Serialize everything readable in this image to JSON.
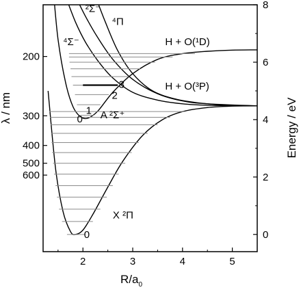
{
  "chart_data": {
    "type": "line",
    "xlabel": "R/a",
    "xlabel_sub": "0",
    "ylabel_right": "Energy / eV",
    "ylabel_left": "λ / nm",
    "xlim": [
      1.2,
      5.5
    ],
    "ylim": [
      -0.6,
      8
    ],
    "x_ticks": [
      2,
      3,
      4,
      5
    ],
    "x_tick_labels": [
      "2",
      "3",
      "4",
      "5"
    ],
    "y_ticks": [
      0,
      2,
      4,
      6,
      8
    ],
    "y_tick_labels": [
      "0",
      "2",
      "4",
      "6",
      "8"
    ],
    "left_axis_ticks_nm": [
      200,
      300,
      400,
      500,
      600
    ],
    "left_axis_tick_labels": [
      "200",
      "300",
      "400",
      "500",
      "600"
    ],
    "grid": false,
    "series": [
      {
        "name": "X 2Π",
        "x": [
          1.3,
          1.45,
          1.6,
          1.75,
          1.85,
          2.0,
          2.2,
          2.5,
          2.8,
          3.2,
          3.6,
          4.0,
          4.5,
          5.0,
          5.5
        ],
        "y": [
          5.0,
          2.3,
          0.8,
          0.1,
          0.0,
          0.15,
          0.7,
          1.65,
          2.55,
          3.45,
          4.0,
          4.28,
          4.42,
          4.47,
          4.48
        ]
      },
      {
        "name": "A 2Σ+",
        "x": [
          1.4,
          1.5,
          1.65,
          1.8,
          1.95,
          2.1,
          2.3,
          2.6,
          3.0,
          3.5,
          4.0,
          4.5,
          5.0,
          5.5
        ],
        "y": [
          8.6,
          6.8,
          5.3,
          4.45,
          4.1,
          4.05,
          4.3,
          4.95,
          5.6,
          6.1,
          6.3,
          6.38,
          6.42,
          6.43
        ]
      },
      {
        "name": "4Σ-",
        "x": [
          1.65,
          1.85,
          2.05,
          2.3,
          2.6,
          3.0,
          3.5,
          4.0,
          4.5,
          5.5
        ],
        "y": [
          8.3,
          7.4,
          6.7,
          6.05,
          5.45,
          4.95,
          4.68,
          4.55,
          4.5,
          4.48
        ]
      },
      {
        "name": "2Σ-",
        "x": [
          1.85,
          2.05,
          2.3,
          2.6,
          3.0,
          3.5,
          4.0,
          4.5,
          5.5
        ],
        "y": [
          8.3,
          7.6,
          6.85,
          6.1,
          5.4,
          4.9,
          4.65,
          4.55,
          4.48
        ]
      },
      {
        "name": "4Π",
        "x": [
          2.25,
          2.45,
          2.7,
          3.0,
          3.4,
          3.9,
          4.5,
          5.0,
          5.5
        ],
        "y": [
          8.3,
          7.4,
          6.4,
          5.6,
          5.0,
          4.7,
          4.55,
          4.5,
          4.48
        ]
      }
    ],
    "vib_levels_X": [
      {
        "y": 0.0,
        "x1": 1.68,
        "x2": 2.05
      },
      {
        "y": 0.45,
        "x1": 1.58,
        "x2": 2.2
      },
      {
        "y": 0.88,
        "x1": 1.52,
        "x2": 2.35
      },
      {
        "y": 1.3,
        "x1": 1.48,
        "x2": 2.48
      },
      {
        "y": 1.7,
        "x1": 1.45,
        "x2": 2.6
      },
      {
        "y": 2.1,
        "x1": 1.42,
        "x2": 2.72
      },
      {
        "y": 2.48,
        "x1": 1.4,
        "x2": 2.85
      },
      {
        "y": 2.85,
        "x1": 1.38,
        "x2": 2.98
      },
      {
        "y": 3.2,
        "x1": 1.37,
        "x2": 3.12
      },
      {
        "y": 3.52,
        "x1": 1.36,
        "x2": 3.3
      },
      {
        "y": 3.82,
        "x1": 1.35,
        "x2": 3.5
      },
      {
        "y": 4.08,
        "x1": 1.34,
        "x2": 3.75
      },
      {
        "y": 4.28,
        "x1": 1.33,
        "x2": 4.05
      }
    ],
    "vib_levels_A": [
      {
        "y": 4.15,
        "x1": 1.95,
        "x2": 2.22
      },
      {
        "y": 4.52,
        "x1": 1.88,
        "x2": 2.35
      },
      {
        "y": 4.87,
        "x1": 1.84,
        "x2": 2.52
      },
      {
        "y": 5.2,
        "x1": 1.8,
        "x2": 2.7
      },
      {
        "y": 5.5,
        "x1": 1.77,
        "x2": 2.92
      },
      {
        "y": 5.77,
        "x1": 1.75,
        "x2": 3.15
      },
      {
        "y": 6.0,
        "x1": 1.73,
        "x2": 3.45
      },
      {
        "y": 6.18,
        "x1": 1.72,
        "x2": 3.8
      },
      {
        "y": 6.3,
        "x1": 1.72,
        "x2": 4.25
      }
    ],
    "highlighted_level": {
      "y": 5.2,
      "x1": 2.0,
      "x2": 2.7
    },
    "annotations": [
      {
        "text": "0",
        "x": 2.02,
        "y": -0.12
      },
      {
        "text": "0",
        "x": 1.88,
        "y": 3.9
      },
      {
        "text": "1",
        "x": 2.06,
        "y": 4.2
      },
      {
        "text": "2",
        "x": 2.58,
        "y": 4.72
      },
      {
        "text": "3",
        "x": 2.72,
        "y": 5.1
      },
      {
        "text": "X ²Π",
        "x": 2.6,
        "y": 0.55
      },
      {
        "text": "A ²Σ⁺",
        "x": 2.35,
        "y": 4.05
      },
      {
        "text": "⁴Σ⁻",
        "x": 1.6,
        "y": 6.6
      },
      {
        "text": "²Σ⁻",
        "x": 2.05,
        "y": 7.75
      },
      {
        "text": "⁴Π",
        "x": 2.58,
        "y": 7.3
      },
      {
        "text": "H + O(¹D)",
        "x": 3.65,
        "y": 6.6
      },
      {
        "text": "H + O(³P)",
        "x": 3.65,
        "y": 5.05
      }
    ]
  }
}
